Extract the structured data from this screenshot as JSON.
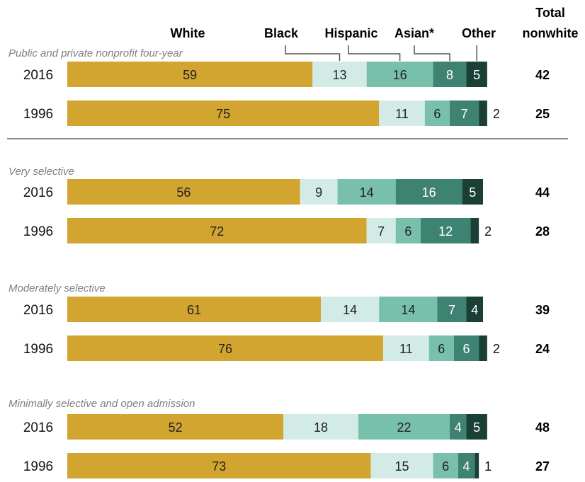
{
  "chart_data": {
    "type": "bar",
    "stacked": true,
    "orientation": "horizontal",
    "legend": [
      "White",
      "Black",
      "Hispanic",
      "Asian*",
      "Other"
    ],
    "total_header": [
      "Total",
      "nonwhite"
    ],
    "colors": {
      "White": "#d1a52f",
      "Black": "#d3ebe6",
      "Hispanic": "#78c0ab",
      "Asian*": "#3e8271",
      "Other": "#1a4036"
    },
    "xlim": [
      0,
      100
    ],
    "groups": [
      {
        "label": "Public and private nonprofit four-year",
        "rows": [
          {
            "year": "2016",
            "values": [
              59,
              13,
              16,
              8,
              5
            ],
            "total": "42"
          },
          {
            "year": "1996",
            "values": [
              75,
              11,
              6,
              7,
              2
            ],
            "total": "25"
          }
        ]
      },
      {
        "label": "Very selective",
        "rows": [
          {
            "year": "2016",
            "values": [
              56,
              9,
              14,
              16,
              5
            ],
            "total": "44"
          },
          {
            "year": "1996",
            "values": [
              72,
              7,
              6,
              12,
              2
            ],
            "total": "28"
          }
        ]
      },
      {
        "label": "Moderately selective",
        "rows": [
          {
            "year": "2016",
            "values": [
              61,
              14,
              14,
              7,
              4
            ],
            "total": "39"
          },
          {
            "year": "1996",
            "values": [
              76,
              11,
              6,
              6,
              2
            ],
            "total": "24"
          }
        ]
      },
      {
        "label": "Minimally selective and open admission",
        "rows": [
          {
            "year": "2016",
            "values": [
              52,
              18,
              22,
              4,
              5
            ],
            "total": "48"
          },
          {
            "year": "1996",
            "values": [
              73,
              15,
              6,
              4,
              1
            ],
            "total": "27"
          }
        ]
      }
    ]
  }
}
